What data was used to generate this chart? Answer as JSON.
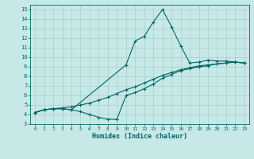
{
  "xlabel": "Humidex (Indice chaleur)",
  "bg_color": "#c8e8e8",
  "line_color": "#006666",
  "grid_color": "#a0d0d0",
  "xlim": [
    -0.5,
    23.5
  ],
  "ylim": [
    3,
    15.5
  ],
  "xticks": [
    0,
    1,
    2,
    3,
    4,
    5,
    6,
    7,
    8,
    9,
    10,
    11,
    12,
    13,
    14,
    15,
    16,
    17,
    18,
    19,
    20,
    21,
    22,
    23
  ],
  "yticks": [
    3,
    4,
    5,
    6,
    7,
    8,
    9,
    10,
    11,
    12,
    13,
    14,
    15
  ],
  "line1_x": [
    0,
    1,
    2,
    3,
    4,
    10,
    11,
    12,
    13,
    14,
    15,
    16,
    17,
    18,
    19,
    20,
    21,
    22,
    23
  ],
  "line1_y": [
    4.2,
    4.5,
    4.6,
    4.6,
    4.5,
    9.2,
    11.7,
    12.2,
    13.7,
    15.0,
    13.2,
    11.2,
    9.4,
    9.5,
    9.7,
    9.6,
    9.6,
    9.5,
    9.4
  ],
  "line2_x": [
    0,
    1,
    2,
    3,
    4,
    5,
    6,
    7,
    8,
    9,
    10,
    11,
    12,
    13,
    14,
    15,
    16,
    17,
    18,
    19,
    20,
    21,
    22,
    23
  ],
  "line2_y": [
    4.2,
    4.5,
    4.6,
    4.7,
    4.8,
    5.0,
    5.2,
    5.5,
    5.8,
    6.2,
    6.6,
    6.9,
    7.3,
    7.7,
    8.1,
    8.4,
    8.7,
    8.9,
    9.1,
    9.2,
    9.3,
    9.4,
    9.5,
    9.4
  ],
  "line3_x": [
    0,
    1,
    2,
    3,
    4,
    5,
    6,
    7,
    8,
    9,
    10,
    11,
    12,
    13,
    14,
    15,
    16,
    17,
    18,
    19,
    20,
    21,
    22,
    23
  ],
  "line3_y": [
    4.2,
    4.5,
    4.6,
    4.6,
    4.5,
    4.3,
    4.0,
    3.7,
    3.5,
    3.5,
    6.0,
    6.3,
    6.7,
    7.2,
    7.8,
    8.2,
    8.6,
    8.8,
    9.0,
    9.1,
    9.3,
    9.4,
    9.5,
    9.4
  ]
}
